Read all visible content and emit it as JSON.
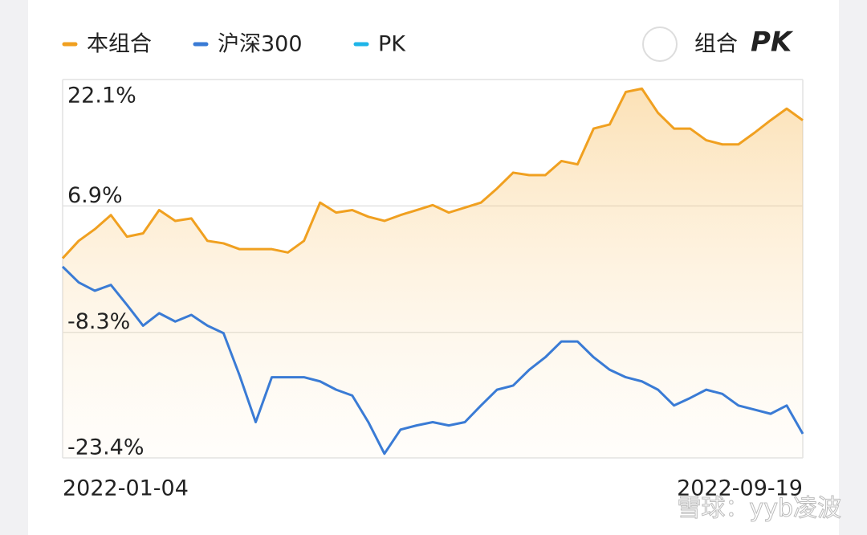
{
  "chart_data": {
    "type": "line",
    "legend_position": "top",
    "toggle": {
      "prefix": "组合",
      "label": "PK"
    },
    "watermark": "雪球：yyb凌波",
    "grid": true,
    "categories": [
      "2022-01-04",
      null,
      null,
      null,
      null,
      null,
      null,
      null,
      null,
      null,
      null,
      null,
      null,
      null,
      null,
      null,
      null,
      null,
      null,
      null,
      null,
      null,
      null,
      null,
      null,
      null,
      null,
      null,
      null,
      null,
      null,
      null,
      null,
      null,
      null,
      null,
      null,
      null,
      null,
      null,
      null,
      null,
      null,
      null,
      null,
      null,
      "2022-09-19"
    ],
    "ylim": [
      -23.4,
      22.1
    ],
    "yticks": [
      {
        "value": 22.1,
        "label": "22.1%"
      },
      {
        "value": 6.9,
        "label": "6.9%"
      },
      {
        "value": -8.3,
        "label": "-8.3%"
      },
      {
        "value": -23.4,
        "label": "-23.4%"
      }
    ],
    "series": [
      {
        "name": "本组合",
        "color": "#f0a020",
        "values": [
          0.6,
          2.7,
          4.1,
          5.8,
          3.2,
          3.6,
          6.4,
          5.1,
          5.4,
          2.7,
          2.4,
          1.7,
          1.7,
          1.7,
          1.3,
          2.7,
          7.3,
          6.1,
          6.4,
          5.6,
          5.1,
          5.8,
          6.4,
          7.0,
          6.1,
          6.7,
          7.3,
          9.0,
          10.9,
          10.6,
          10.6,
          12.3,
          11.9,
          16.2,
          16.7,
          20.6,
          21.0,
          18.1,
          16.2,
          16.2,
          14.8,
          14.3,
          14.3,
          15.7,
          17.2,
          18.6,
          17.2
        ]
      },
      {
        "name": "沪深300",
        "color": "#3a7bd5",
        "values": [
          -0.4,
          -2.3,
          -3.3,
          -2.6,
          -5.0,
          -7.5,
          -6.0,
          -7.0,
          -6.2,
          -7.5,
          -8.4,
          -13.5,
          -19.1,
          -13.7,
          -13.7,
          -13.7,
          -14.2,
          -15.2,
          -15.9,
          -19.1,
          -22.9,
          -20.0,
          -19.5,
          -19.1,
          -19.5,
          -19.1,
          -17.1,
          -15.2,
          -14.7,
          -12.8,
          -11.3,
          -9.4,
          -9.4,
          -11.3,
          -12.8,
          -13.7,
          -14.2,
          -15.2,
          -17.1,
          -16.2,
          -15.2,
          -15.7,
          -17.1,
          -17.6,
          -18.1,
          -17.1,
          -20.5
        ]
      },
      {
        "name": "PK",
        "color": "#1fb5e8",
        "values": [
          null,
          null,
          null,
          null,
          null,
          null,
          null,
          null,
          null,
          null,
          null,
          null,
          null,
          null,
          null,
          null,
          null,
          null,
          null,
          null,
          null,
          null,
          null,
          null,
          null,
          null,
          null,
          null,
          null,
          null,
          null,
          null,
          null,
          null,
          null,
          null,
          null,
          null,
          null,
          null,
          null,
          null,
          null,
          null,
          null,
          null,
          null
        ]
      }
    ]
  }
}
